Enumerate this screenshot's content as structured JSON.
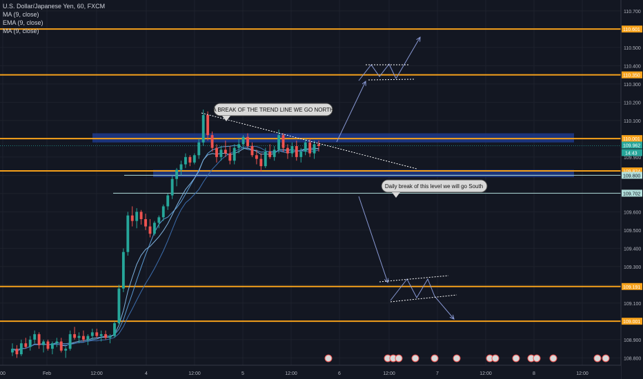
{
  "legend": {
    "title": "U.S. Dollar/Japanese Yen, 60, FXCM",
    "lines": [
      "MA (9, close)",
      "EMA (9, close)",
      "MA (9, close)"
    ]
  },
  "price_axis": {
    "ticks": [
      "110.700",
      "110.600",
      "110.500",
      "110.400",
      "110.300",
      "110.200",
      "110.100",
      "110.000",
      "109.900",
      "109.800",
      "109.700",
      "109.600",
      "109.500",
      "109.400",
      "109.300",
      "109.200",
      "109.100",
      "109.000",
      "108.900",
      "108.800"
    ]
  },
  "time_axis": {
    "ticks": [
      "00",
      "Feb",
      "12:00",
      "4",
      "12:00",
      "5",
      "12:00",
      "6",
      "12:00",
      "7",
      "12:00",
      "8",
      "12:00"
    ]
  },
  "annotations": {
    "north": "A BREAK OF THE TREND LINE WE GO NORTH",
    "south": "Daily break of this level we will go South"
  },
  "colors": {
    "background": "#131722",
    "up": "#26a69a",
    "down": "#ef5350",
    "level_line": "#f7a21b",
    "zone": "#1e3a8a",
    "arrow": "#8a9ad6",
    "ma": "#5b9bd5"
  },
  "chart_data": {
    "type": "candlestick",
    "instrument": "U.S. Dollar/Japanese Yen",
    "timeframe": "60",
    "ylim": [
      108.76,
      110.76
    ],
    "horizontal_levels": [
      {
        "label": "110.601",
        "value": 110.601
      },
      {
        "label": "110.350",
        "value": 110.35
      },
      {
        "label": "110.001",
        "value": 110.001
      },
      {
        "label": "109.824",
        "value": 109.824
      },
      {
        "label": "109.191",
        "value": 109.191
      },
      {
        "label": "109.001",
        "value": 109.001
      }
    ],
    "support_lines": [
      {
        "label": "109.800",
        "value": 109.8
      },
      {
        "label": "109.702",
        "value": 109.702
      }
    ],
    "current_price": {
      "value": "109.962",
      "countdown": "14:43"
    },
    "zones": [
      {
        "from": 109.98,
        "to": 110.03
      },
      {
        "from": 109.79,
        "to": 109.83
      }
    ],
    "candles": [
      [
        108.83,
        108.88,
        108.81,
        108.85
      ],
      [
        108.85,
        108.87,
        108.8,
        108.82
      ],
      [
        108.82,
        108.9,
        108.81,
        108.88
      ],
      [
        108.88,
        108.91,
        108.85,
        108.86
      ],
      [
        108.86,
        108.92,
        108.84,
        108.9
      ],
      [
        108.9,
        108.95,
        108.88,
        108.93
      ],
      [
        108.93,
        108.94,
        108.85,
        108.87
      ],
      [
        108.87,
        108.9,
        108.83,
        108.89
      ],
      [
        108.89,
        108.9,
        108.84,
        108.85
      ],
      [
        108.85,
        108.89,
        108.82,
        108.88
      ],
      [
        108.88,
        108.91,
        108.86,
        108.89
      ],
      [
        108.89,
        108.91,
        108.83,
        108.84
      ],
      [
        108.84,
        108.86,
        108.8,
        108.85
      ],
      [
        108.85,
        108.95,
        108.84,
        108.93
      ],
      [
        108.93,
        108.97,
        108.9,
        108.91
      ],
      [
        108.91,
        108.94,
        108.88,
        108.92
      ],
      [
        108.92,
        108.95,
        108.89,
        108.9
      ],
      [
        108.9,
        108.93,
        108.87,
        108.92
      ],
      [
        108.92,
        108.96,
        108.9,
        108.94
      ],
      [
        108.94,
        108.96,
        108.91,
        108.92
      ],
      [
        108.92,
        108.95,
        108.89,
        108.93
      ],
      [
        108.93,
        108.95,
        108.9,
        108.91
      ],
      [
        108.91,
        108.93,
        108.88,
        108.92
      ],
      [
        108.92,
        109.0,
        108.91,
        108.99
      ],
      [
        108.99,
        109.2,
        108.98,
        109.18
      ],
      [
        109.18,
        109.4,
        109.16,
        109.38
      ],
      [
        109.38,
        109.6,
        109.36,
        109.58
      ],
      [
        109.58,
        109.63,
        109.52,
        109.55
      ],
      [
        109.55,
        109.62,
        109.51,
        109.6
      ],
      [
        109.6,
        109.61,
        109.53,
        109.56
      ],
      [
        109.56,
        109.59,
        109.5,
        109.52
      ],
      [
        109.52,
        109.56,
        109.46,
        109.48
      ],
      [
        109.48,
        109.55,
        109.47,
        109.54
      ],
      [
        109.54,
        109.58,
        109.51,
        109.57
      ],
      [
        109.57,
        109.64,
        109.55,
        109.63
      ],
      [
        109.63,
        109.7,
        109.61,
        109.69
      ],
      [
        109.69,
        109.8,
        109.67,
        109.78
      ],
      [
        109.78,
        109.84,
        109.74,
        109.83
      ],
      [
        109.83,
        109.88,
        109.8,
        109.86
      ],
      [
        109.86,
        109.92,
        109.84,
        109.9
      ],
      [
        109.9,
        109.91,
        109.85,
        109.87
      ],
      [
        109.87,
        109.92,
        109.86,
        109.91
      ],
      [
        109.91,
        110.0,
        109.89,
        109.98
      ],
      [
        109.98,
        110.16,
        109.96,
        110.13
      ],
      [
        110.13,
        110.15,
        109.99,
        110.02
      ],
      [
        110.02,
        110.04,
        109.93,
        109.95
      ],
      [
        109.95,
        109.97,
        109.87,
        109.9
      ],
      [
        109.9,
        109.96,
        109.88,
        109.94
      ],
      [
        109.94,
        109.99,
        109.9,
        109.92
      ],
      [
        109.92,
        109.96,
        109.86,
        109.88
      ],
      [
        109.88,
        109.97,
        109.86,
        109.95
      ],
      [
        109.95,
        110.0,
        109.92,
        109.97
      ],
      [
        109.97,
        110.02,
        109.94,
        110.01
      ],
      [
        110.01,
        110.03,
        109.95,
        109.96
      ],
      [
        109.96,
        109.98,
        109.9,
        109.91
      ],
      [
        109.91,
        109.94,
        109.86,
        109.89
      ],
      [
        109.89,
        109.92,
        109.82,
        109.85
      ],
      [
        109.85,
        109.95,
        109.84,
        109.93
      ],
      [
        109.93,
        109.97,
        109.89,
        109.9
      ],
      [
        109.9,
        109.96,
        109.88,
        109.94
      ],
      [
        109.94,
        110.05,
        109.92,
        110.02
      ],
      [
        110.02,
        110.03,
        109.93,
        109.95
      ],
      [
        109.95,
        109.97,
        109.89,
        109.92
      ],
      [
        109.92,
        109.98,
        109.9,
        109.96
      ],
      [
        109.96,
        109.99,
        109.88,
        109.9
      ],
      [
        109.9,
        109.95,
        109.87,
        109.93
      ],
      [
        109.93,
        110.0,
        109.91,
        109.98
      ],
      [
        109.98,
        110.0,
        109.9,
        109.92
      ],
      [
        109.92,
        109.99,
        109.89,
        109.97
      ],
      [
        109.97,
        109.99,
        109.93,
        109.96
      ]
    ]
  }
}
